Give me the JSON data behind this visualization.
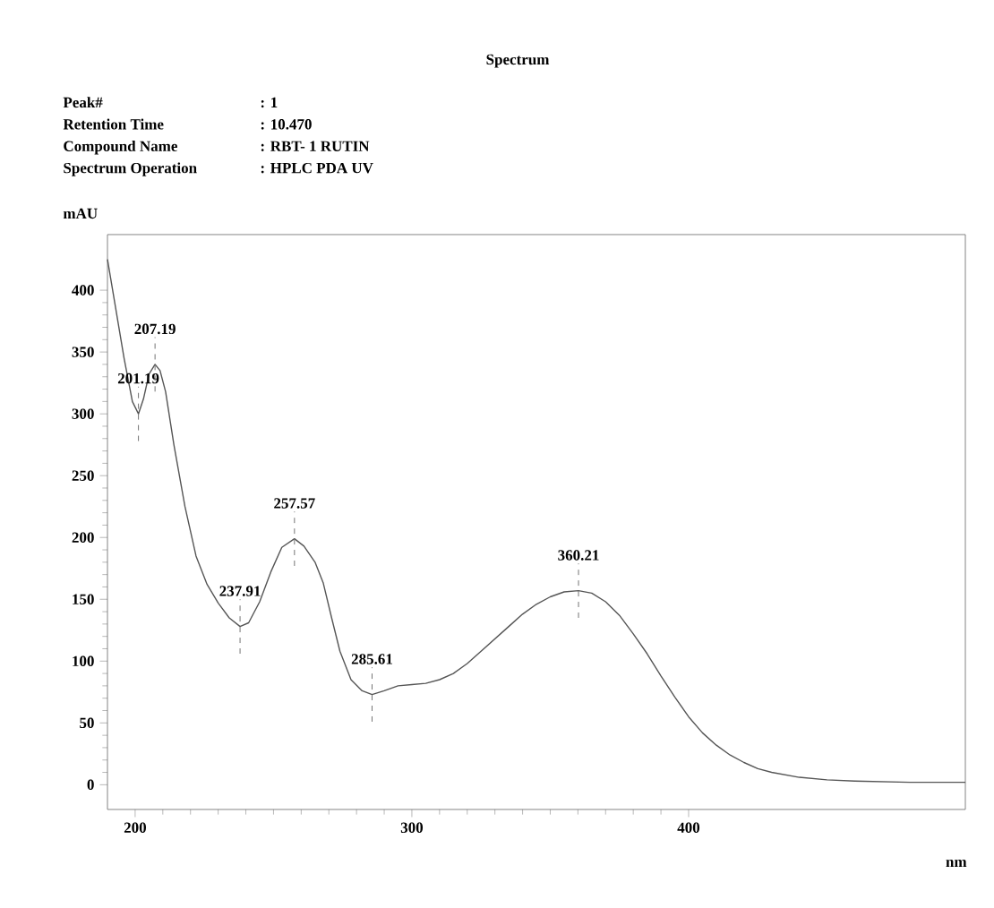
{
  "chart_data": {
    "type": "line",
    "title": "Spectrum",
    "xlabel": "nm",
    "ylabel": "mAU",
    "annotations": [
      "Peak#",
      ": 1",
      "Retention Time",
      ": 10.470",
      "Compound Name",
      ": RBT- 1 RUTIN",
      "Spectrum Operation",
      ": HPLC PDA UV",
      {
        "text": "201.19",
        "x": 201.19,
        "y": 300
      },
      {
        "text": "207.19",
        "x": 207.19,
        "y": 340
      },
      {
        "text": "237.91",
        "x": 237.91,
        "y": 128
      },
      {
        "text": "257.57",
        "x": 257.57,
        "y": 199
      },
      {
        "text": "285.61",
        "x": 285.61,
        "y": 73
      },
      {
        "text": "360.21",
        "x": 360.21,
        "y": 157
      }
    ],
    "x": [
      190,
      193,
      196,
      199,
      201.19,
      203,
      205,
      207.19,
      209,
      211,
      214,
      218,
      222,
      226,
      230,
      234,
      237.91,
      241,
      245,
      249,
      253,
      257.57,
      261,
      265,
      268,
      271,
      274,
      278,
      282,
      285.61,
      290,
      295,
      300,
      305,
      310,
      315,
      320,
      325,
      330,
      335,
      340,
      345,
      350,
      355,
      360.21,
      365,
      370,
      375,
      380,
      385,
      390,
      395,
      400,
      405,
      410,
      415,
      420,
      425,
      430,
      440,
      450,
      460,
      480,
      500
    ],
    "values": [
      425,
      385,
      345,
      310,
      300,
      312,
      332,
      340,
      335,
      318,
      275,
      225,
      185,
      162,
      147,
      135,
      128,
      131,
      148,
      172,
      192,
      199,
      193,
      180,
      163,
      135,
      108,
      85,
      76,
      73,
      76,
      80,
      81,
      82,
      85,
      90,
      98,
      108,
      118,
      128,
      138,
      146,
      152,
      156,
      157,
      155,
      148,
      137,
      122,
      106,
      88,
      71,
      55,
      42,
      32,
      24,
      18,
      13,
      10,
      6,
      4,
      3,
      2,
      2
    ],
    "color": "#555555",
    "xlim": [
      190,
      500
    ],
    "ylim": [
      -20,
      445
    ],
    "xticks": [
      200,
      300,
      400
    ],
    "yticks": [
      0,
      50,
      100,
      150,
      200,
      250,
      300,
      350,
      400
    ],
    "grid": false
  }
}
